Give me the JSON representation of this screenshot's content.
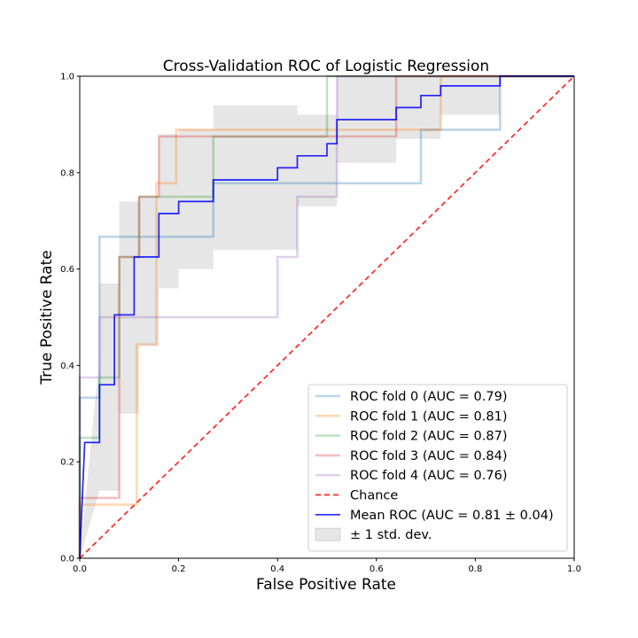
{
  "chart_data": {
    "type": "line",
    "title": "Cross-Validation ROC of Logistic Regression",
    "xlabel": "False Positive Rate",
    "ylabel": "True Positive Rate",
    "xlim": [
      0,
      1
    ],
    "ylim": [
      0,
      1
    ],
    "xticks": [
      "0.0",
      "0.2",
      "0.4",
      "0.6",
      "0.8",
      "1.0"
    ],
    "yticks": [
      "0.0",
      "0.2",
      "0.4",
      "0.6",
      "0.8",
      "1.0"
    ],
    "grid": false,
    "legend_position": "lower-right",
    "series": [
      {
        "name": "ROC fold 0 (AUC = 0.79)",
        "color": "#1f77b4",
        "style": "solid",
        "x": [
          0,
          0,
          0.04,
          0.04,
          0.27,
          0.27,
          0.69,
          0.69,
          0.85,
          0.85,
          1.0
        ],
        "y": [
          0,
          0.333,
          0.333,
          0.667,
          0.667,
          0.778,
          0.778,
          0.889,
          0.889,
          1.0,
          1.0
        ]
      },
      {
        "name": "ROC fold 1 (AUC = 0.81)",
        "color": "#ff7f0e",
        "style": "solid",
        "x": [
          0,
          0,
          0.115,
          0.115,
          0.155,
          0.155,
          0.195,
          0.195,
          0.73,
          0.73,
          1.0
        ],
        "y": [
          0,
          0.111,
          0.111,
          0.444,
          0.444,
          0.778,
          0.778,
          0.889,
          0.889,
          1.0,
          1.0
        ]
      },
      {
        "name": "ROC fold 2 (AUC = 0.87)",
        "color": "#2ca02c",
        "style": "solid",
        "x": [
          0,
          0,
          0.04,
          0.04,
          0.08,
          0.08,
          0.12,
          0.12,
          0.27,
          0.27,
          0.5,
          0.5,
          1.0
        ],
        "y": [
          0,
          0.25,
          0.25,
          0.375,
          0.375,
          0.625,
          0.625,
          0.75,
          0.75,
          0.875,
          0.875,
          1.0,
          1.0
        ]
      },
      {
        "name": "ROC fold 3 (AUC = 0.84)",
        "color": "#d62728",
        "style": "solid",
        "x": [
          0,
          0,
          0.08,
          0.08,
          0.12,
          0.12,
          0.16,
          0.16,
          0.64,
          0.64,
          1.0
        ],
        "y": [
          0,
          0.125,
          0.125,
          0.625,
          0.625,
          0.75,
          0.75,
          0.875,
          0.875,
          1.0,
          1.0
        ]
      },
      {
        "name": "ROC fold 4 (AUC = 0.76)",
        "color": "#9467bd",
        "style": "solid",
        "x": [
          0,
          0,
          0.04,
          0.04,
          0.4,
          0.4,
          0.44,
          0.44,
          0.52,
          0.52,
          1.0
        ],
        "y": [
          0,
          0.375,
          0.375,
          0.5,
          0.5,
          0.625,
          0.625,
          0.75,
          0.75,
          1.0,
          1.0
        ]
      },
      {
        "name": "Chance",
        "color": "#ff0000",
        "style": "dashed",
        "x": [
          0,
          1
        ],
        "y": [
          0,
          1
        ]
      },
      {
        "name": "Mean ROC (AUC = 0.81 ± 0.04)",
        "color": "#0000ff",
        "style": "solid",
        "x": [
          0,
          0.01,
          0.01,
          0.04,
          0.04,
          0.07,
          0.07,
          0.08,
          0.08,
          0.11,
          0.11,
          0.15,
          0.15,
          0.16,
          0.16,
          0.2,
          0.2,
          0.27,
          0.27,
          0.4,
          0.4,
          0.44,
          0.44,
          0.5,
          0.5,
          0.52,
          0.52,
          0.64,
          0.64,
          0.69,
          0.69,
          0.73,
          0.73,
          0.85,
          0.85,
          1.0
        ],
        "y": [
          0,
          0.24,
          0.24,
          0.24,
          0.36,
          0.36,
          0.505,
          0.505,
          0.505,
          0.505,
          0.625,
          0.625,
          0.625,
          0.625,
          0.715,
          0.715,
          0.74,
          0.74,
          0.785,
          0.785,
          0.81,
          0.81,
          0.835,
          0.835,
          0.86,
          0.86,
          0.91,
          0.91,
          0.935,
          0.935,
          0.96,
          0.96,
          0.98,
          0.98,
          1.0,
          1.0
        ]
      }
    ],
    "band": {
      "name": "± 1 std. dev.",
      "color": "#bdbdbd",
      "x": [
        0,
        0.04,
        0.04,
        0.08,
        0.08,
        0.12,
        0.12,
        0.16,
        0.16,
        0.2,
        0.2,
        0.27,
        0.27,
        0.4,
        0.4,
        0.44,
        0.44,
        0.52,
        0.52,
        0.64,
        0.64,
        0.73,
        0.73,
        0.85,
        0.85,
        1.0
      ],
      "upper": [
        0,
        0.42,
        0.57,
        0.57,
        0.74,
        0.74,
        0.75,
        0.75,
        0.88,
        0.88,
        0.89,
        0.89,
        0.94,
        0.94,
        0.94,
        0.94,
        0.92,
        0.92,
        1.0,
        1.0,
        1.0,
        1.0,
        1.0,
        1.0,
        1.0,
        1.0
      ],
      "lower": [
        0,
        0.14,
        0.14,
        0.14,
        0.3,
        0.3,
        0.44,
        0.44,
        0.56,
        0.56,
        0.6,
        0.6,
        0.64,
        0.64,
        0.64,
        0.64,
        0.73,
        0.73,
        0.82,
        0.82,
        0.87,
        0.87,
        0.92,
        0.92,
        1.0,
        1.0
      ]
    }
  }
}
